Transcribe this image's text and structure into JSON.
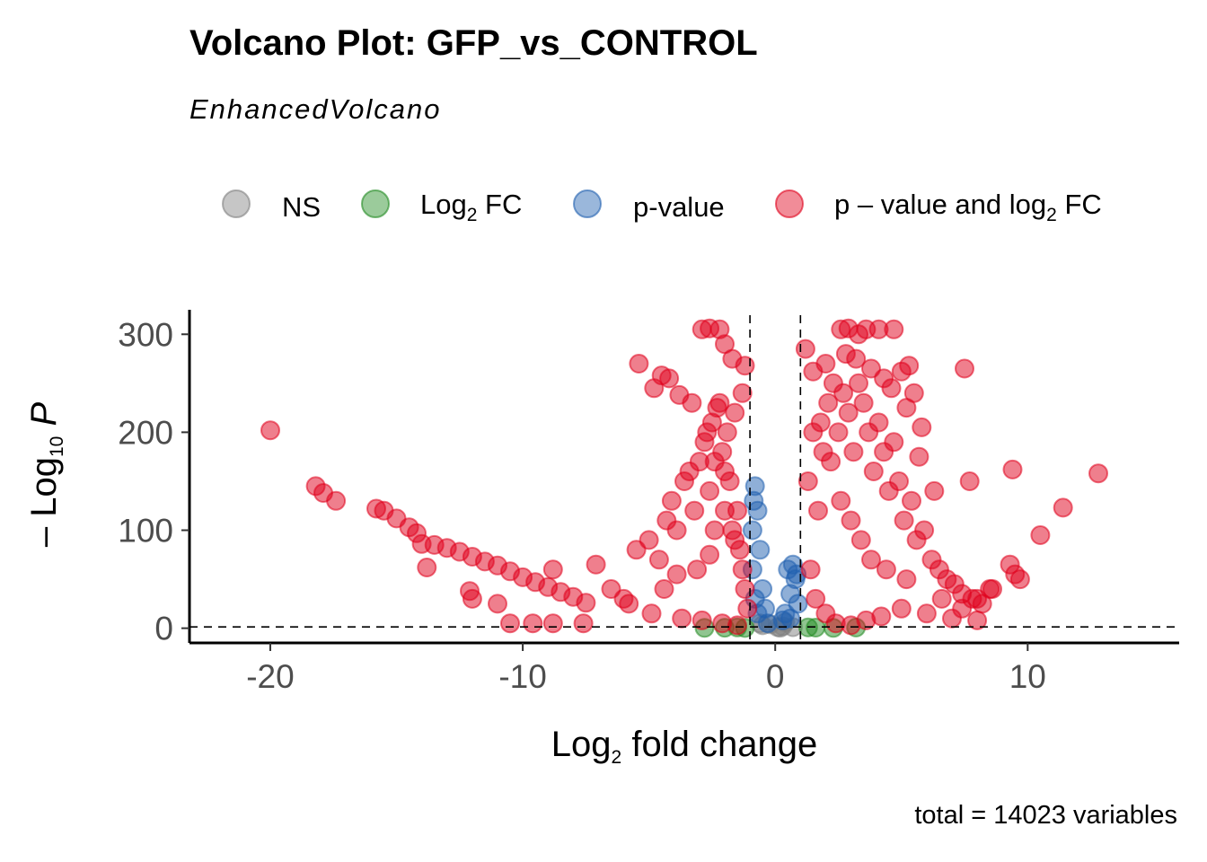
{
  "chart_data": {
    "type": "scatter",
    "title": "Volcano Plot: GFP_vs_CONTROL",
    "subtitle": "EnhancedVolcano",
    "caption": "total = 14023 variables",
    "xlabel": {
      "main": "Log",
      "sub": "2",
      "rest": " fold change"
    },
    "ylabel": {
      "prefix": "– Log",
      "sub": "10",
      "suffix": " P"
    },
    "xlim": [
      -23.2,
      16.0
    ],
    "ylim": [
      -15,
      325
    ],
    "x_ticks": [
      -20,
      -10,
      0,
      10
    ],
    "x_tick_labels": [
      "-20",
      "-10",
      "0",
      "10"
    ],
    "y_ticks": [
      0,
      100,
      200,
      300
    ],
    "y_tick_labels": [
      "0",
      "100",
      "200",
      "300"
    ],
    "fc_cutoff": 1,
    "p_cutoff_log10": 1.3,
    "legend_placement": "top",
    "legend": [
      {
        "key": "ns",
        "label": "NS",
        "color": "#808080"
      },
      {
        "key": "fc",
        "label": "Log",
        "sub": "2",
        "rest": " FC",
        "color": "#228B22"
      },
      {
        "key": "p",
        "label": "p-value",
        "color": "#1F5FAF"
      },
      {
        "key": "both",
        "label": "p – value and log",
        "sub": "2",
        "rest": " FC",
        "color": "#E0001B"
      }
    ],
    "series": [
      {
        "name": "NS",
        "color": "#808080",
        "points": [
          [
            0.1,
            1
          ],
          [
            0.3,
            2
          ],
          [
            -0.2,
            4
          ],
          [
            0.4,
            6
          ],
          [
            -0.5,
            3
          ],
          [
            0.7,
            1
          ],
          [
            0.2,
            0.5
          ],
          [
            -0.6,
            5
          ]
        ]
      },
      {
        "name": "Log2 FC",
        "color": "#228B22",
        "points": [
          [
            -2.0,
            0.5
          ],
          [
            1.6,
            0.6
          ],
          [
            2.3,
            0.3
          ],
          [
            -1.5,
            0.8
          ],
          [
            1.3,
            0.9
          ],
          [
            -2.8,
            0.4
          ],
          [
            3.2,
            0.7
          ],
          [
            -1.2,
            0.2
          ]
        ]
      },
      {
        "name": "p-value",
        "color": "#1F5FAF",
        "points": [
          [
            -0.9,
            60
          ],
          [
            -0.8,
            30
          ],
          [
            -0.7,
            120
          ],
          [
            -0.8,
            145
          ],
          [
            -0.6,
            80
          ],
          [
            -0.9,
            100
          ],
          [
            -0.5,
            40
          ],
          [
            -0.7,
            15
          ],
          [
            -0.4,
            20
          ],
          [
            -0.3,
            5
          ],
          [
            0.5,
            60
          ],
          [
            0.7,
            65
          ],
          [
            0.6,
            35
          ],
          [
            0.8,
            50
          ],
          [
            0.4,
            15
          ],
          [
            0.9,
            25
          ],
          [
            0.3,
            8
          ],
          [
            0.6,
            10
          ],
          [
            -0.85,
            130
          ],
          [
            0.85,
            55
          ]
        ]
      },
      {
        "name": "p - value and log2 FC",
        "color": "#E0001B",
        "points": [
          [
            -20.0,
            202
          ],
          [
            -18.2,
            145
          ],
          [
            -17.9,
            138
          ],
          [
            -17.4,
            130
          ],
          [
            -15.8,
            122
          ],
          [
            -15.5,
            120
          ],
          [
            -15.0,
            112
          ],
          [
            -14.5,
            103
          ],
          [
            -14.2,
            97
          ],
          [
            -14.0,
            86
          ],
          [
            -13.8,
            62
          ],
          [
            -13.5,
            85
          ],
          [
            -13.0,
            82
          ],
          [
            -12.5,
            78
          ],
          [
            -12.0,
            73
          ],
          [
            -11.5,
            68
          ],
          [
            -11.0,
            64
          ],
          [
            -10.5,
            58
          ],
          [
            -10.0,
            52
          ],
          [
            -9.5,
            47
          ],
          [
            -9.0,
            42
          ],
          [
            -8.5,
            37
          ],
          [
            -8.0,
            32
          ],
          [
            -7.5,
            26
          ],
          [
            -12.1,
            38
          ],
          [
            -12.0,
            30
          ],
          [
            -11.0,
            25
          ],
          [
            -10.5,
            5
          ],
          [
            -9.6,
            5
          ],
          [
            -8.8,
            5
          ],
          [
            -7.6,
            5
          ],
          [
            -8.8,
            60
          ],
          [
            -7.1,
            65
          ],
          [
            -5.4,
            270
          ],
          [
            -4.8,
            245
          ],
          [
            -4.5,
            258
          ],
          [
            -4.2,
            255
          ],
          [
            -3.8,
            238
          ],
          [
            -3.3,
            230
          ],
          [
            -2.9,
            305
          ],
          [
            -2.6,
            306
          ],
          [
            -2.2,
            305
          ],
          [
            -2.0,
            290
          ],
          [
            -1.7,
            275
          ],
          [
            -1.2,
            268
          ],
          [
            -1.3,
            240
          ],
          [
            -6.5,
            40
          ],
          [
            -6.0,
            30
          ],
          [
            -5.5,
            80
          ],
          [
            -5.0,
            90
          ],
          [
            -4.6,
            70
          ],
          [
            -4.3,
            110
          ],
          [
            -4.1,
            130
          ],
          [
            -3.9,
            100
          ],
          [
            -3.6,
            150
          ],
          [
            -3.4,
            160
          ],
          [
            -3.2,
            120
          ],
          [
            -3.0,
            170
          ],
          [
            -2.8,
            190
          ],
          [
            -2.7,
            200
          ],
          [
            -2.6,
            140
          ],
          [
            -2.5,
            210
          ],
          [
            -2.4,
            170
          ],
          [
            -2.3,
            225
          ],
          [
            -2.2,
            230
          ],
          [
            -2.1,
            180
          ],
          [
            -2.0,
            160
          ],
          [
            -1.9,
            200
          ],
          [
            -1.8,
            150
          ],
          [
            -1.7,
            100
          ],
          [
            -1.6,
            220
          ],
          [
            -1.5,
            120
          ],
          [
            -1.4,
            80
          ],
          [
            -1.3,
            60
          ],
          [
            -1.2,
            40
          ],
          [
            -1.1,
            20
          ],
          [
            -5.8,
            25
          ],
          [
            -4.9,
            15
          ],
          [
            -3.7,
            10
          ],
          [
            -2.9,
            8
          ],
          [
            -2.1,
            5
          ],
          [
            -1.5,
            3
          ],
          [
            -3.1,
            60
          ],
          [
            -2.6,
            75
          ],
          [
            -4.4,
            40
          ],
          [
            -3.9,
            55
          ],
          [
            -2.4,
            100
          ],
          [
            -2.0,
            120
          ],
          [
            -1.6,
            90
          ],
          [
            1.2,
            285
          ],
          [
            1.5,
            262
          ],
          [
            2.0,
            270
          ],
          [
            2.6,
            305
          ],
          [
            2.9,
            306
          ],
          [
            3.3,
            300
          ],
          [
            3.6,
            305
          ],
          [
            4.1,
            305
          ],
          [
            4.7,
            305
          ],
          [
            5.0,
            262
          ],
          [
            5.3,
            268
          ],
          [
            5.2,
            225
          ],
          [
            5.5,
            240
          ],
          [
            5.8,
            205
          ],
          [
            5.7,
            175
          ],
          [
            6.3,
            140
          ],
          [
            7.5,
            265
          ],
          [
            7.7,
            150
          ],
          [
            9.4,
            162
          ],
          [
            10.5,
            95
          ],
          [
            11.4,
            123
          ],
          [
            12.8,
            158
          ],
          [
            9.5,
            55
          ],
          [
            9.7,
            50
          ],
          [
            9.3,
            65
          ],
          [
            7.4,
            20
          ],
          [
            8.0,
            30
          ],
          [
            8.6,
            40
          ],
          [
            1.4,
            60
          ],
          [
            1.7,
            120
          ],
          [
            1.9,
            180
          ],
          [
            2.1,
            230
          ],
          [
            2.3,
            250
          ],
          [
            2.5,
            200
          ],
          [
            2.7,
            240
          ],
          [
            2.9,
            220
          ],
          [
            3.1,
            180
          ],
          [
            3.3,
            250
          ],
          [
            3.5,
            230
          ],
          [
            3.7,
            200
          ],
          [
            3.9,
            160
          ],
          [
            4.1,
            210
          ],
          [
            4.3,
            180
          ],
          [
            4.5,
            140
          ],
          [
            4.7,
            190
          ],
          [
            4.9,
            150
          ],
          [
            5.1,
            110
          ],
          [
            5.4,
            130
          ],
          [
            5.6,
            90
          ],
          [
            5.9,
            100
          ],
          [
            6.2,
            70
          ],
          [
            6.5,
            60
          ],
          [
            6.8,
            50
          ],
          [
            7.1,
            45
          ],
          [
            7.4,
            35
          ],
          [
            7.8,
            30
          ],
          [
            8.2,
            25
          ],
          [
            8.5,
            40
          ],
          [
            1.6,
            30
          ],
          [
            2.0,
            15
          ],
          [
            2.4,
            5
          ],
          [
            3.0,
            3
          ],
          [
            3.6,
            8
          ],
          [
            4.2,
            12
          ],
          [
            5.0,
            20
          ],
          [
            6.0,
            15
          ],
          [
            7.0,
            10
          ],
          [
            8.0,
            8
          ],
          [
            1.3,
            150
          ],
          [
            1.5,
            200
          ],
          [
            1.8,
            210
          ],
          [
            2.2,
            170
          ],
          [
            2.6,
            130
          ],
          [
            3.0,
            110
          ],
          [
            3.4,
            90
          ],
          [
            3.8,
            70
          ],
          [
            4.4,
            60
          ],
          [
            5.2,
            50
          ],
          [
            6.6,
            30
          ],
          [
            2.8,
            280
          ],
          [
            3.2,
            275
          ],
          [
            3.8,
            265
          ],
          [
            4.3,
            255
          ],
          [
            4.6,
            245
          ]
        ]
      }
    ]
  }
}
